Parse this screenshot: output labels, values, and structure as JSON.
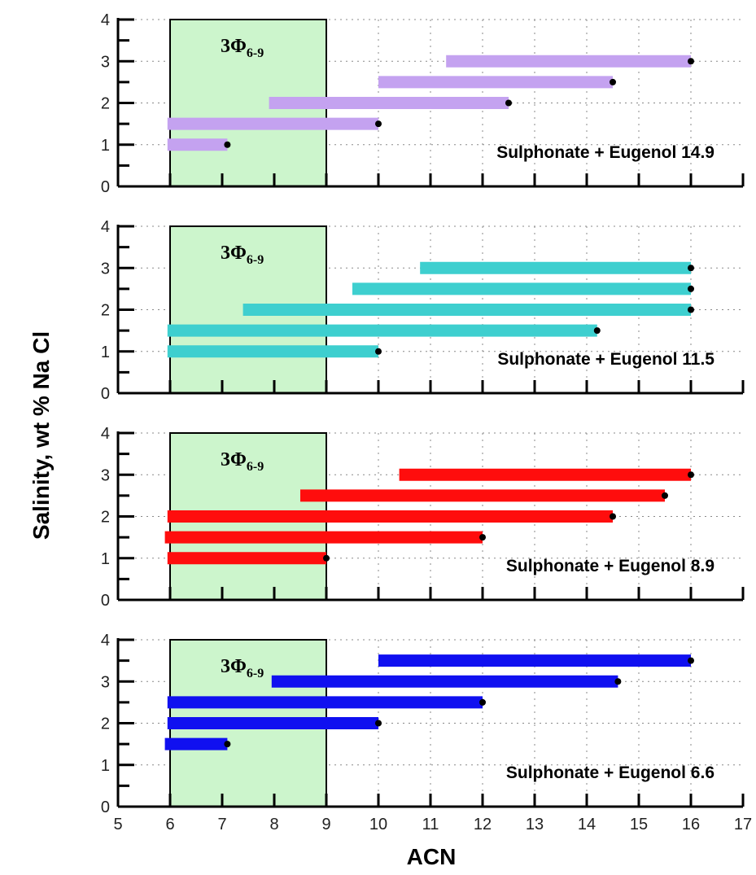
{
  "chart_data": {
    "type": "range-bar",
    "xlabel": "ACN",
    "ylabel": "Salinity, wt % Na Cl",
    "xlim": [
      5,
      17
    ],
    "ylim": [
      0,
      4
    ],
    "x_ticks": [
      "5",
      "6",
      "7",
      "8",
      "9",
      "10",
      "11",
      "12",
      "13",
      "14",
      "15",
      "16",
      "17"
    ],
    "y_ticks": [
      "0",
      "1",
      "2",
      "3",
      "4"
    ],
    "grid": "dotted",
    "shaded_region": {
      "x": [
        6,
        9
      ],
      "label_main": "3Φ",
      "label_sub": "6-9",
      "color": "#ccf5cc"
    },
    "panels": [
      {
        "annotation": "Sulphonate + Eugenol  14.9",
        "color": "#c4a2f0",
        "bars": [
          {
            "salinity": 3.0,
            "x_start": 11.3,
            "x_end": 16.0
          },
          {
            "salinity": 2.5,
            "x_start": 10.0,
            "x_end": 14.5
          },
          {
            "salinity": 2.0,
            "x_start": 7.9,
            "x_end": 12.5
          },
          {
            "salinity": 1.5,
            "x_start": 5.95,
            "x_end": 10.0
          },
          {
            "salinity": 1.0,
            "x_start": 5.95,
            "x_end": 7.1
          }
        ]
      },
      {
        "annotation": "Sulphonate + Eugenol  11.5",
        "color": "#3ecfcf",
        "bars": [
          {
            "salinity": 3.0,
            "x_start": 10.8,
            "x_end": 16.0
          },
          {
            "salinity": 2.5,
            "x_start": 9.5,
            "x_end": 16.0
          },
          {
            "salinity": 2.0,
            "x_start": 7.4,
            "x_end": 16.0
          },
          {
            "salinity": 1.5,
            "x_start": 5.95,
            "x_end": 14.2
          },
          {
            "salinity": 1.0,
            "x_start": 5.95,
            "x_end": 10.0
          }
        ]
      },
      {
        "annotation": "Sulphonate + Eugenol  8.9",
        "color": "#ff0d0d",
        "bars": [
          {
            "salinity": 3.0,
            "x_start": 10.4,
            "x_end": 16.0
          },
          {
            "salinity": 2.5,
            "x_start": 8.5,
            "x_end": 15.5
          },
          {
            "salinity": 2.0,
            "x_start": 5.95,
            "x_end": 14.5
          },
          {
            "salinity": 1.5,
            "x_start": 5.9,
            "x_end": 12.0
          },
          {
            "salinity": 1.0,
            "x_start": 5.95,
            "x_end": 9.0
          }
        ]
      },
      {
        "annotation": "Sulphonate + Eugenol  6.6",
        "color": "#1010f0",
        "bars": [
          {
            "salinity": 3.5,
            "x_start": 10.0,
            "x_end": 16.0
          },
          {
            "salinity": 3.0,
            "x_start": 7.95,
            "x_end": 14.6
          },
          {
            "salinity": 2.5,
            "x_start": 5.95,
            "x_end": 12.0
          },
          {
            "salinity": 2.0,
            "x_start": 5.95,
            "x_end": 10.0
          },
          {
            "salinity": 1.5,
            "x_start": 5.9,
            "x_end": 7.1
          }
        ]
      }
    ]
  }
}
